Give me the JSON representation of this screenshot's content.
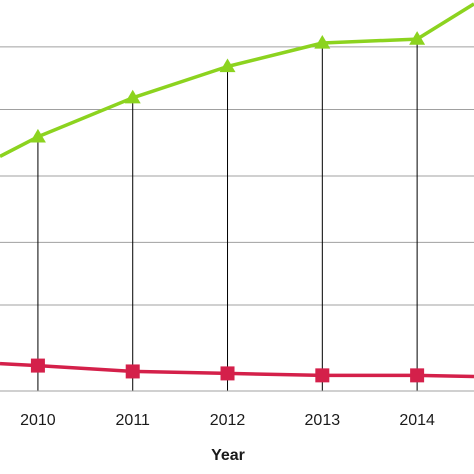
{
  "chart_data": {
    "type": "line",
    "title": "",
    "xlabel": "Year",
    "ylabel": "",
    "x": [
      2009.6,
      2010,
      2011,
      2012,
      2013,
      2014,
      2014.6
    ],
    "tick_labels": [
      "2010",
      "2011",
      "2012",
      "2013",
      "2014"
    ],
    "tick_values": [
      2010,
      2011,
      2012,
      2013,
      2014
    ],
    "xlim": [
      2009.6,
      2014.6
    ],
    "ylim": [
      0,
      1
    ],
    "grid_y": [
      0.22,
      0.38,
      0.55,
      0.72,
      0.88
    ],
    "grid": true,
    "drop_lines": true,
    "series": [
      {
        "marker": "triangle",
        "color": "#8cd31f",
        "values": [
          0.6,
          0.65,
          0.75,
          0.83,
          0.89,
          0.9,
          0.99
        ]
      },
      {
        "marker": "square",
        "color": "#d4204a",
        "values": [
          0.07,
          0.065,
          0.05,
          0.045,
          0.04,
          0.04,
          0.037
        ]
      }
    ]
  }
}
